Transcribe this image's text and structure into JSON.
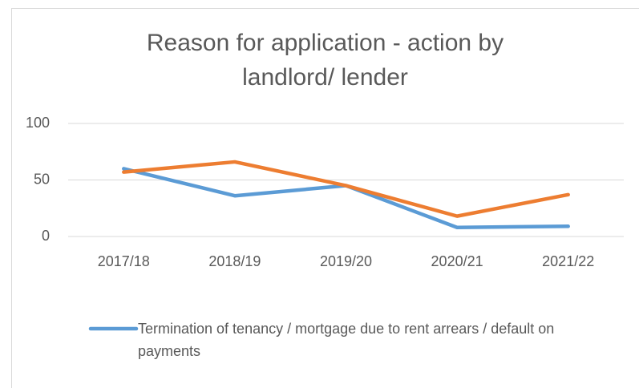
{
  "chart_data": {
    "type": "line",
    "title": "Reason for application - action by landlord/ lender",
    "categories": [
      "2017/18",
      "2018/19",
      "2019/20",
      "2020/21",
      "2021/22"
    ],
    "series": [
      {
        "name": "Termination of tenancy / mortgage due to rent arrears / default on payments",
        "color": "#5b9bd5",
        "values": [
          60,
          36,
          45,
          8,
          9
        ]
      },
      {
        "color": "#ed7d31",
        "values": [
          57,
          66,
          45,
          18,
          37
        ]
      }
    ],
    "ylim": [
      0,
      100
    ],
    "yticks": [
      0,
      50,
      100
    ],
    "grid": true,
    "legend": "bottom"
  }
}
